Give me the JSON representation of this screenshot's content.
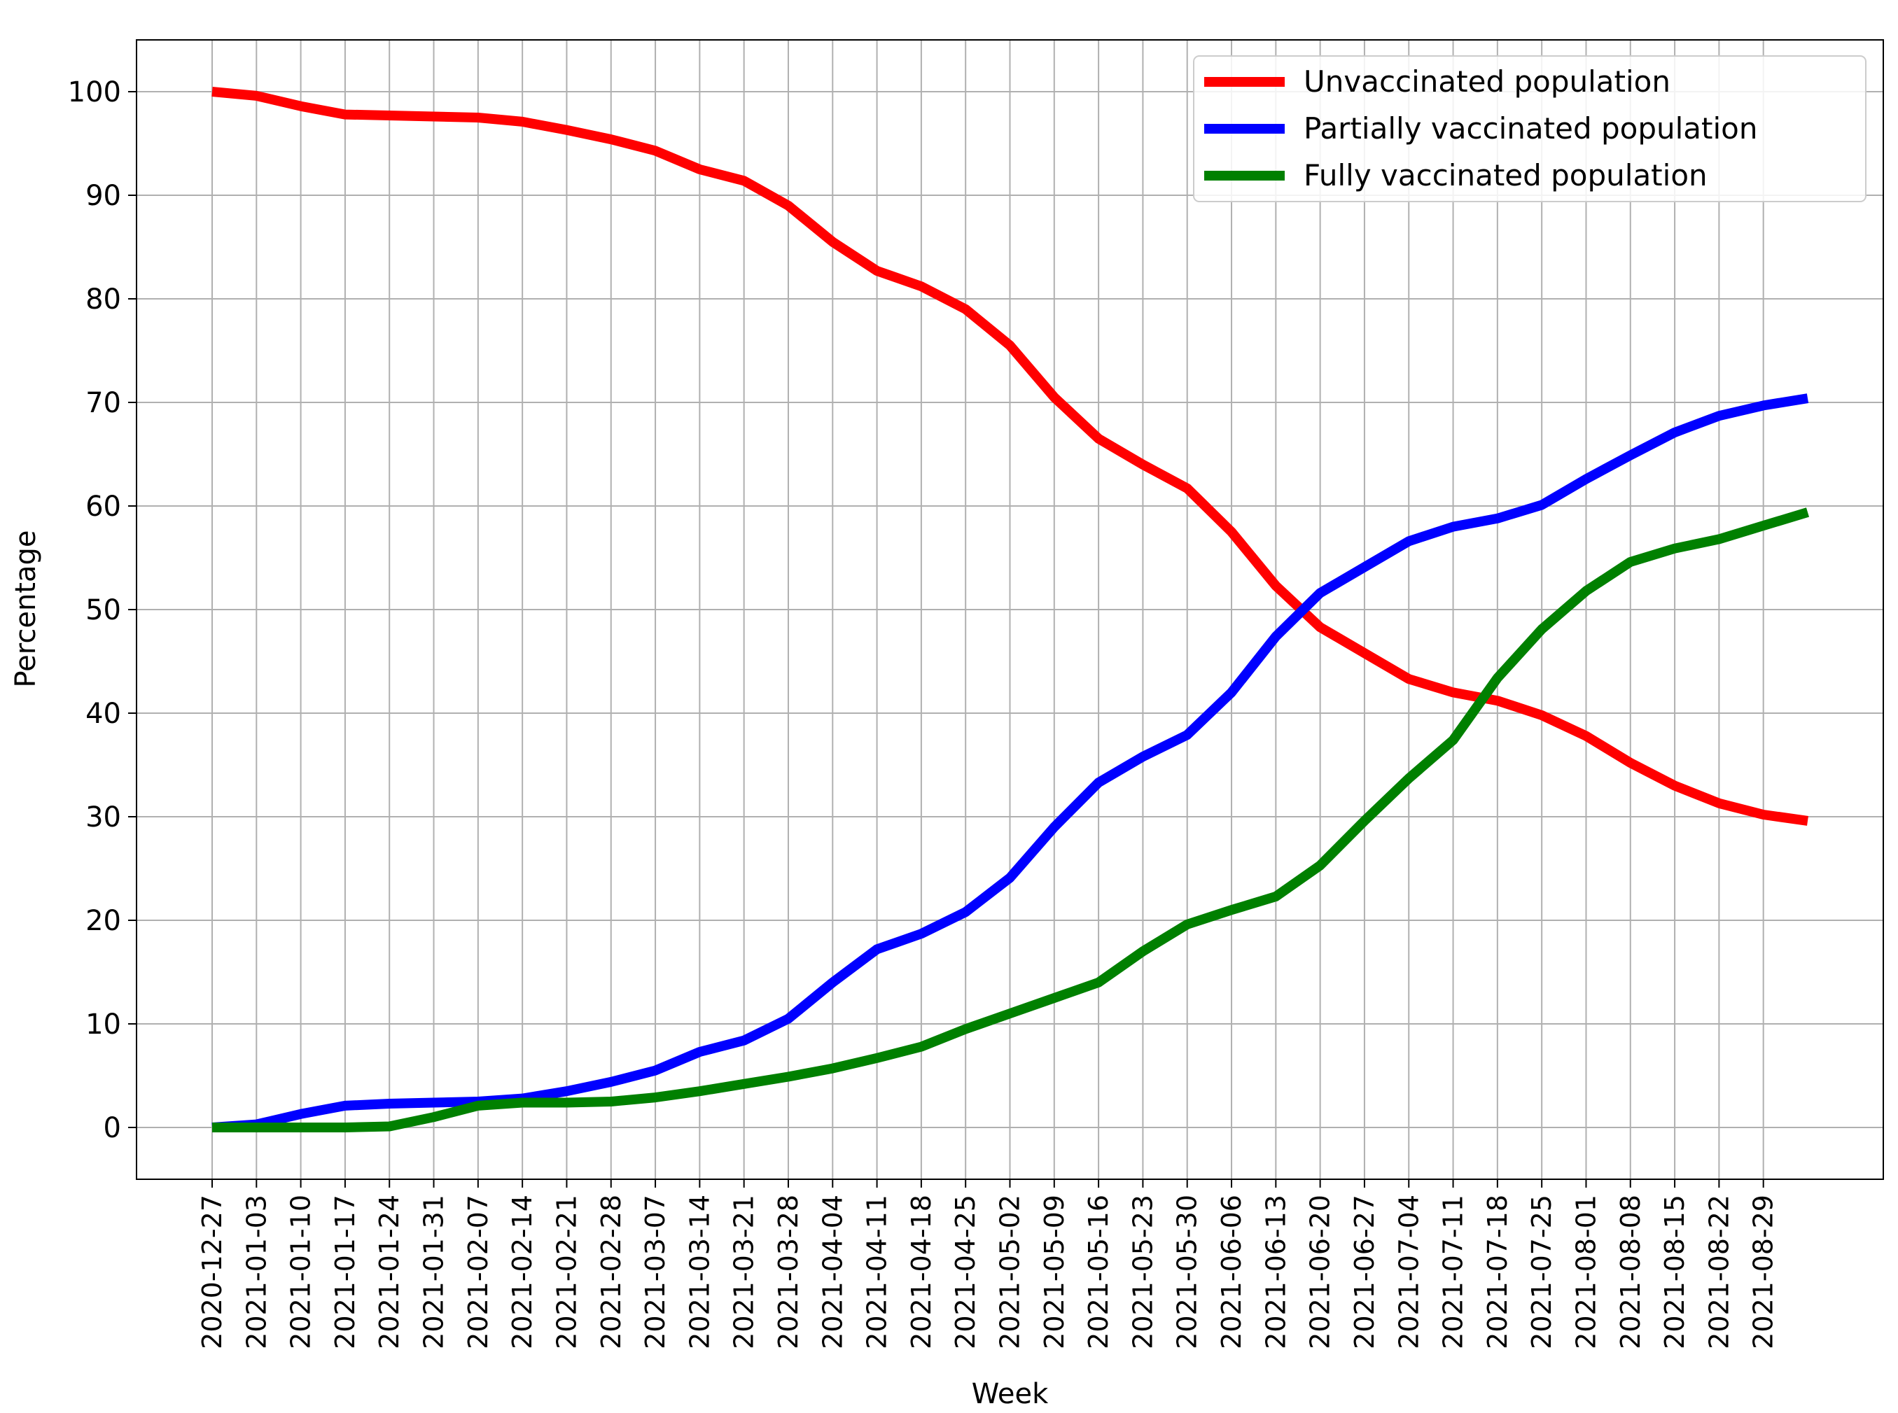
{
  "chart_data": {
    "type": "line",
    "title": "",
    "xlabel": "Week",
    "ylabel": "Percentage",
    "ylim": [
      -5,
      105
    ],
    "yticks": [
      0,
      10,
      20,
      30,
      40,
      50,
      60,
      70,
      80,
      90,
      100
    ],
    "grid": true,
    "legend_position": "top-right",
    "x": [
      "2020-12-27",
      "2021-01-03",
      "2021-01-10",
      "2021-01-17",
      "2021-01-24",
      "2021-01-31",
      "2021-02-07",
      "2021-02-14",
      "2021-02-21",
      "2021-02-28",
      "2021-03-07",
      "2021-03-14",
      "2021-03-21",
      "2021-03-28",
      "2021-04-04",
      "2021-04-11",
      "2021-04-18",
      "2021-04-25",
      "2021-05-02",
      "2021-05-09",
      "2021-05-16",
      "2021-05-23",
      "2021-05-30",
      "2021-06-06",
      "2021-06-13",
      "2021-06-20",
      "2021-06-27",
      "2021-07-04",
      "2021-07-11",
      "2021-07-18",
      "2021-07-25",
      "2021-08-01",
      "2021-08-08",
      "2021-08-15",
      "2021-08-22",
      "2021-08-29",
      "2021-09-05"
    ],
    "xtick_labels": [
      "2020-12-27",
      "2021-01-03",
      "2021-01-10",
      "2021-01-17",
      "2021-01-24",
      "2021-01-31",
      "2021-02-07",
      "2021-02-14",
      "2021-02-21",
      "2021-02-28",
      "2021-03-07",
      "2021-03-14",
      "2021-03-21",
      "2021-03-28",
      "2021-04-04",
      "2021-04-11",
      "2021-04-18",
      "2021-04-25",
      "2021-05-02",
      "2021-05-09",
      "2021-05-16",
      "2021-05-23",
      "2021-05-30",
      "2021-06-06",
      "2021-06-13",
      "2021-06-20",
      "2021-06-27",
      "2021-07-04",
      "2021-07-11",
      "2021-07-18",
      "2021-07-25",
      "2021-08-01",
      "2021-08-08",
      "2021-08-15",
      "2021-08-22",
      "2021-08-29"
    ],
    "series": [
      {
        "name": "Unvaccinated population",
        "color": "#ff0000",
        "values": [
          100,
          99.6,
          98.6,
          97.8,
          97.7,
          97.6,
          97.5,
          97.1,
          96.3,
          95.4,
          94.3,
          92.5,
          91.4,
          89.0,
          85.5,
          82.7,
          81.2,
          79.0,
          75.5,
          70.5,
          66.5,
          64.0,
          61.7,
          57.5,
          52.3,
          48.3,
          45.8,
          43.3,
          42.0,
          41.2,
          39.8,
          37.8,
          35.2,
          33.0,
          31.3,
          30.2,
          29.6
        ]
      },
      {
        "name": "Partially vaccinated population",
        "color": "#0000ff",
        "values": [
          0,
          0.3,
          1.3,
          2.1,
          2.3,
          2.4,
          2.5,
          2.8,
          3.5,
          4.4,
          5.5,
          7.3,
          8.4,
          10.5,
          14.0,
          17.2,
          18.7,
          20.8,
          24.1,
          29.0,
          33.3,
          35.8,
          37.9,
          42.0,
          47.4,
          51.6,
          54.1,
          56.6,
          58.0,
          58.8,
          60.1,
          62.6,
          64.9,
          67.1,
          68.7,
          69.7,
          70.4
        ]
      },
      {
        "name": "Fully vaccinated population",
        "color": "#008000",
        "values": [
          0,
          0,
          0,
          0,
          0.1,
          1.0,
          2.1,
          2.4,
          2.4,
          2.5,
          2.9,
          3.5,
          4.2,
          4.9,
          5.7,
          6.7,
          7.8,
          9.5,
          11.0,
          12.5,
          14.0,
          17.0,
          19.6,
          21.0,
          22.3,
          25.3,
          29.6,
          33.7,
          37.4,
          43.4,
          48.1,
          51.8,
          54.6,
          55.9,
          56.8,
          58.1,
          59.4
        ]
      }
    ]
  }
}
